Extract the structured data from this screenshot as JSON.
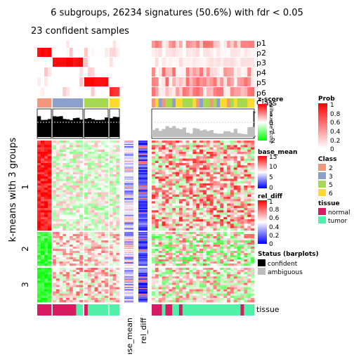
{
  "chart_data": {
    "type": "heatmap",
    "title": "6 subgroups, 26234 signatures (50.6%) with fdr < 0.05",
    "subtitle": "23 confident samples",
    "ylabel": "k-means with 3 groups",
    "row_annotation_labels": [
      "p1",
      "p2",
      "p3",
      "p4",
      "p5",
      "p6",
      "Class"
    ],
    "column_annotation_labels": [
      "base_mean",
      "rel_diff"
    ],
    "bottom_annotation_label": "tissue",
    "row_groups": [
      "1",
      "2",
      "3"
    ],
    "silhouette_axis": {
      "label": "Silhouette score",
      "ticks": [
        "0",
        "1"
      ]
    },
    "legends": {
      "zscore": {
        "title": "z-score",
        "ticks": [
          "2",
          "1",
          "0",
          "-1",
          "-2"
        ],
        "colors": [
          "#ff0000",
          "#ffffff",
          "#00ff00"
        ]
      },
      "base_mean": {
        "title": "base_mean",
        "ticks": [
          "15",
          "10",
          "5",
          "0"
        ],
        "colors": [
          "#ff0000",
          "#ffffff",
          "#0000ff"
        ]
      },
      "rel_diff": {
        "title": "rel_diff",
        "ticks": [
          "1",
          "0.8",
          "0.6",
          "0.4",
          "0.2",
          "0"
        ],
        "colors": [
          "#ff0000",
          "#ffffff",
          "#0000ff"
        ]
      },
      "status": {
        "title": "Status (barplots)",
        "items": [
          {
            "label": "confident",
            "color": "#000000"
          },
          {
            "label": "ambiguous",
            "color": "#bebebe"
          }
        ]
      },
      "prob": {
        "title": "Prob",
        "ticks": [
          "1",
          "0.8",
          "0.6",
          "0.4",
          "0.2",
          "0"
        ],
        "colors": [
          "#ff0000",
          "#ffffff"
        ]
      },
      "class": {
        "title": "Class",
        "items": [
          {
            "label": "2",
            "color": "#f4967a"
          },
          {
            "label": "3",
            "color": "#8da0cb"
          },
          {
            "label": "5",
            "color": "#a6d854"
          },
          {
            "label": "6",
            "color": "#ffd92f"
          }
        ]
      },
      "tissue": {
        "title": "tissue",
        "items": [
          {
            "label": "normal",
            "color": "#d81b60"
          },
          {
            "label": "tumor",
            "color": "#50f0a8"
          }
        ]
      }
    }
  }
}
